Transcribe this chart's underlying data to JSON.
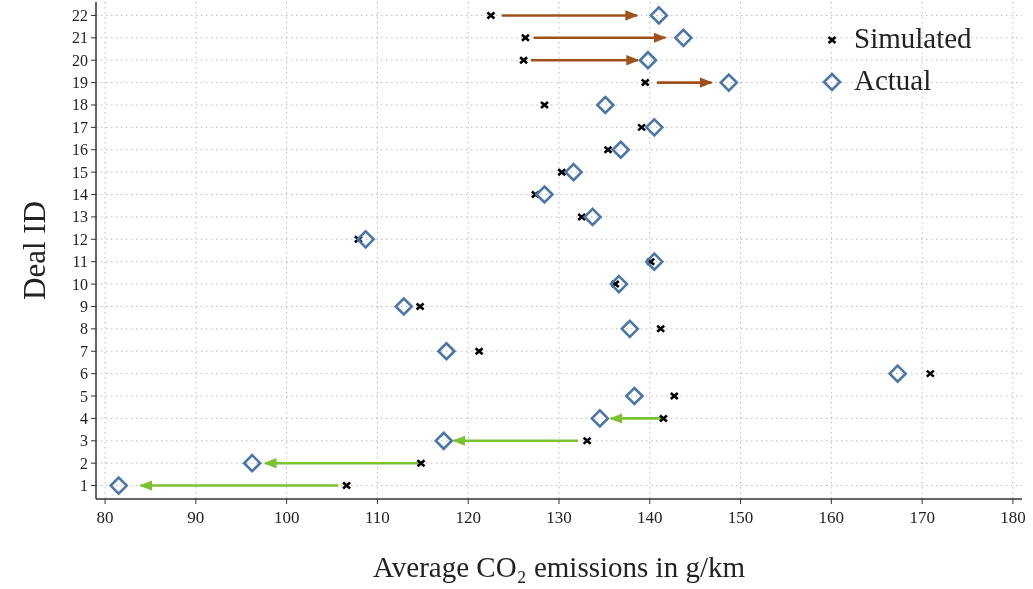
{
  "chart_data": {
    "type": "scatter",
    "xlabel": "Average CO₂ emissions in g/km",
    "ylabel": "Deal ID",
    "xlim": [
      79,
      181
    ],
    "xticks": [
      80,
      90,
      100,
      110,
      120,
      130,
      140,
      150,
      160,
      170,
      180
    ],
    "ylim": [
      0.4,
      22.6
    ],
    "yticks": [
      1,
      2,
      3,
      4,
      5,
      6,
      7,
      8,
      9,
      10,
      11,
      12,
      13,
      14,
      15,
      16,
      17,
      18,
      19,
      20,
      21,
      22
    ],
    "grid": true,
    "legend": "top right",
    "line_style": "solid",
    "series": [
      {
        "type": "line",
        "color": "#7ac230",
        "x": [
          105.7,
          83.9
        ],
        "values": [
          1,
          1
        ]
      },
      {
        "type": "line",
        "color": "#7ac230",
        "x": [
          114.6,
          97.6
        ],
        "values": [
          2,
          2
        ]
      },
      {
        "type": "line",
        "color": "#7ac230",
        "x": [
          132.1,
          118.4
        ],
        "values": [
          3,
          3
        ]
      },
      {
        "type": "line",
        "color": "#7ac230",
        "x": [
          141.4,
          135.7
        ],
        "values": [
          4,
          4
        ]
      },
      {
        "type": "line",
        "color": "#a0521a",
        "x": [
          140.8,
          146.8
        ],
        "values": [
          19,
          19
        ]
      },
      {
        "type": "line",
        "color": "#a0521a",
        "x": [
          126.9,
          138.7
        ],
        "values": [
          20,
          20
        ]
      },
      {
        "type": "line",
        "color": "#a0521a",
        "x": [
          127.2,
          141.7
        ],
        "values": [
          21,
          21
        ]
      },
      {
        "type": "line",
        "color": "#a0521a",
        "x": [
          123.7,
          138.6
        ],
        "values": [
          22,
          22
        ]
      },
      {
        "name": "Simulated",
        "color": "#000000",
        "marker": "cross",
        "x": [
          106.6,
          114.8,
          133.1,
          141.5,
          142.7,
          170.9,
          121.2,
          141.2,
          114.7,
          136.2,
          140.1,
          107.9,
          132.5,
          127.4,
          130.3,
          135.4,
          139.1,
          128.4,
          139.5,
          126.1,
          126.3,
          122.5
        ],
        "values": [
          1,
          2,
          3,
          4,
          5,
          6,
          7,
          8,
          9,
          10,
          11,
          12,
          13,
          14,
          15,
          16,
          17,
          18,
          19,
          20,
          21,
          22
        ]
      },
      {
        "name": "Actual",
        "color": "#4a76a8",
        "marker": "diamond",
        "x": [
          81.5,
          96.2,
          117.3,
          134.5,
          138.3,
          167.3,
          117.6,
          137.8,
          112.9,
          136.6,
          140.5,
          108.7,
          133.7,
          128.4,
          131.6,
          136.8,
          140.5,
          135.1,
          148.7,
          139.8,
          143.7,
          141.0
        ],
        "values": [
          1,
          2,
          3,
          4,
          5,
          6,
          7,
          8,
          9,
          10,
          11,
          12,
          13,
          14,
          15,
          16,
          17,
          18,
          19,
          20,
          21,
          22
        ]
      }
    ]
  }
}
